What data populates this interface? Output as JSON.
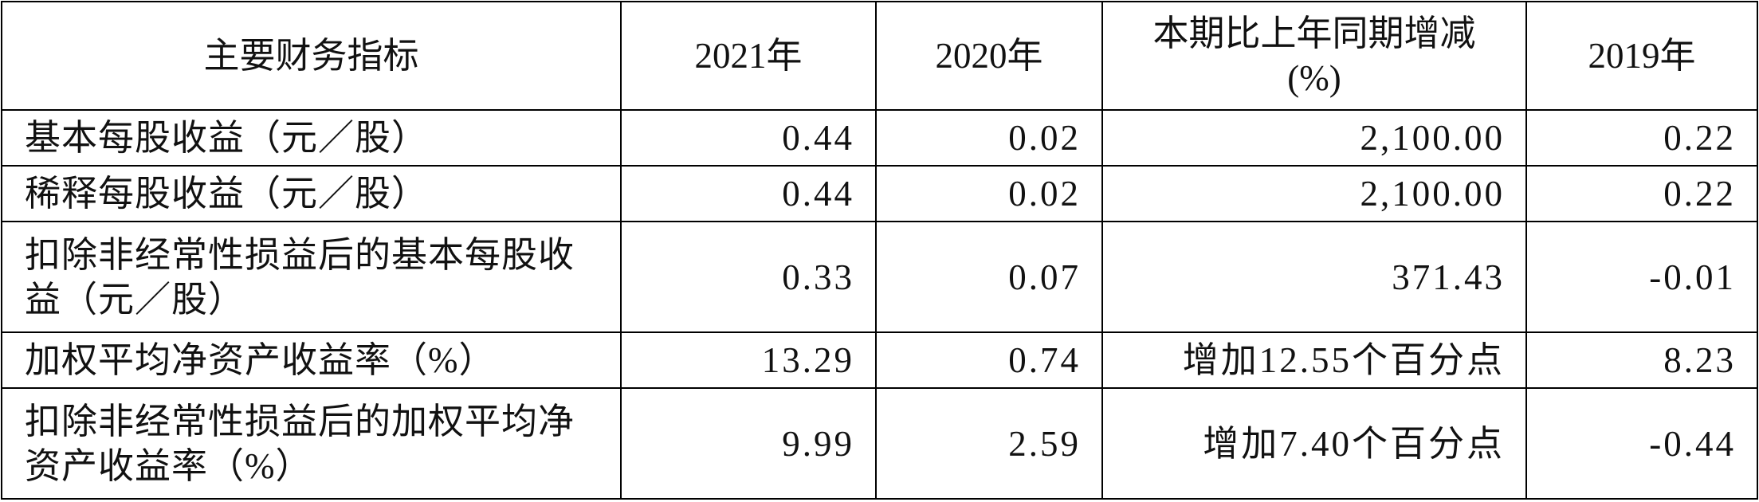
{
  "table": {
    "header": [
      "主要财务指标",
      "2021年",
      "2020年",
      "本期比上年同期增减(%)",
      "2019年"
    ],
    "rows": [
      [
        "基本每股收益（元／股）",
        "0.44",
        "0.02",
        "2,100.00",
        "0.22"
      ],
      [
        "稀释每股收益（元／股）",
        "0.44",
        "0.02",
        "2,100.00",
        "0.22"
      ],
      [
        "扣除非经常性损益后的基本每股收益（元／股）",
        "0.33",
        "0.07",
        "371.43",
        "-0.01"
      ],
      [
        "加权平均净资产收益率（%）",
        "13.29",
        "0.74",
        "增加12.55个百分点",
        "8.23"
      ],
      [
        "扣除非经常性损益后的加权平均净资产收益率（%）",
        "9.99",
        "2.59",
        "增加7.40个百分点",
        "-0.44"
      ]
    ]
  }
}
